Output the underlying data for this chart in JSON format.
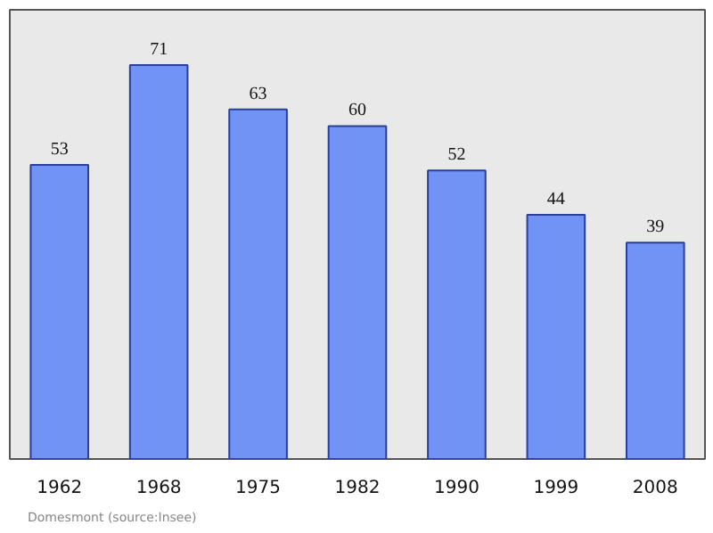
{
  "chart_data": {
    "type": "bar",
    "categories": [
      "1962",
      "1968",
      "1975",
      "1982",
      "1990",
      "1999",
      "2008"
    ],
    "values": [
      53,
      71,
      63,
      60,
      52,
      44,
      39
    ],
    "color": "#7093f5",
    "data_labels": true,
    "grid": false,
    "annotations": [
      "Domesmont    (source:Insee)"
    ]
  }
}
